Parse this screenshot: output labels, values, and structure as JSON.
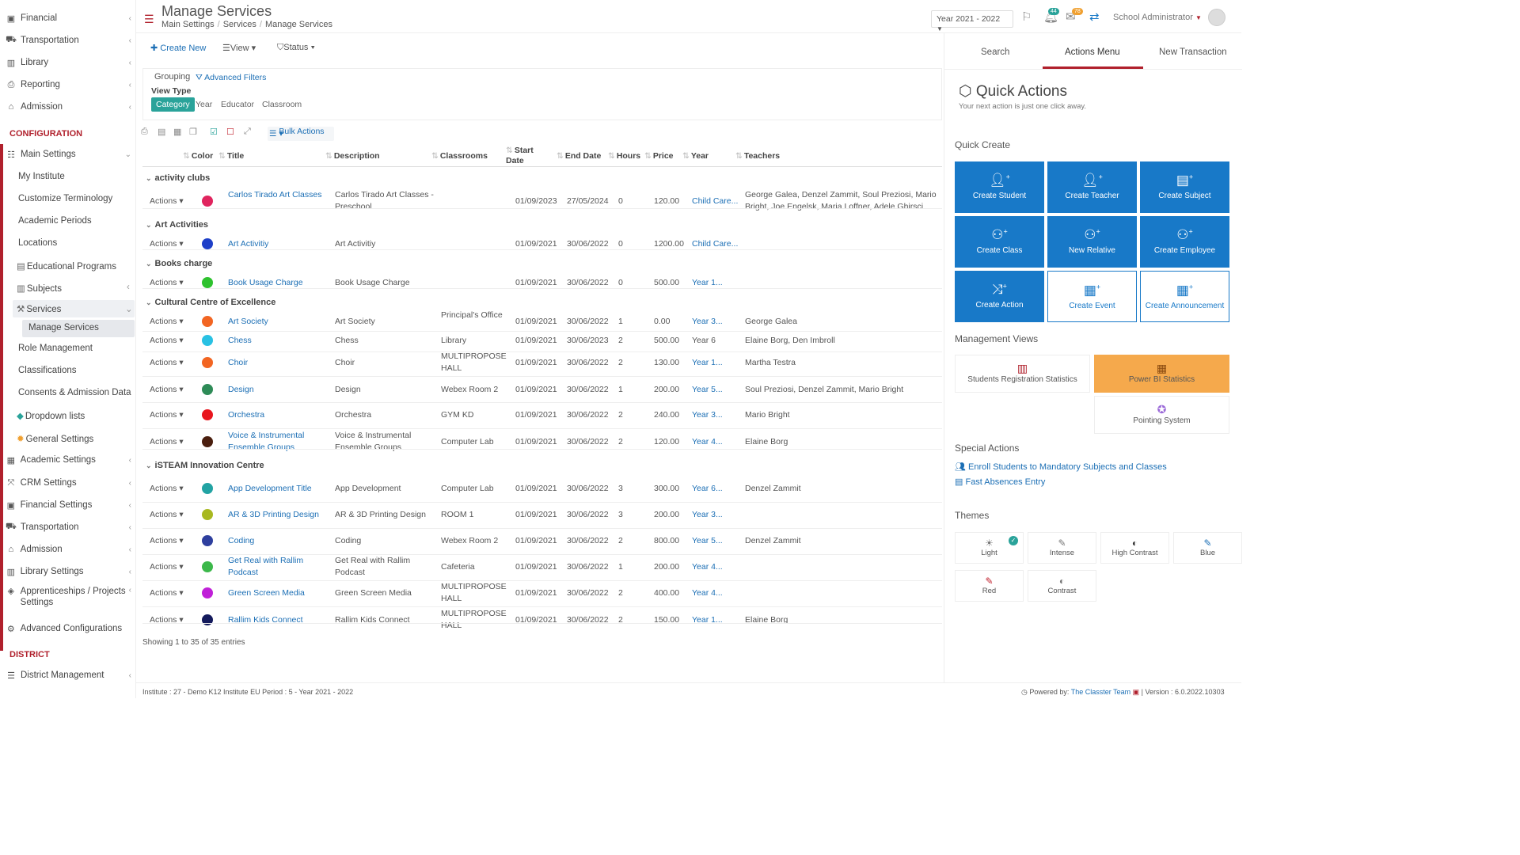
{
  "sidebar": {
    "top_items": [
      {
        "icon": "financial-icon",
        "label": "Financial"
      },
      {
        "icon": "bus-icon",
        "label": "Transportation"
      },
      {
        "icon": "library-icon",
        "label": "Library"
      },
      {
        "icon": "reporting-icon",
        "label": "Reporting"
      },
      {
        "icon": "bank-icon",
        "label": "Admission"
      }
    ],
    "config_heading": "CONFIGURATION",
    "main_settings": "Main Settings",
    "sub_items": [
      "My Institute",
      "Customize Terminology",
      "Academic Periods",
      "Locations",
      "Educational Programs",
      "Subjects",
      "Services",
      "Manage Services",
      "Role Management",
      "Classifications",
      "Consents & Admission Data",
      "Dropdown lists",
      "General Settings"
    ],
    "bottom_items": [
      {
        "icon": "academic-icon",
        "label": "Academic Settings"
      },
      {
        "icon": "crm-icon",
        "label": "CRM Settings"
      },
      {
        "icon": "financial-icon",
        "label": "Financial Settings"
      },
      {
        "icon": "bus-icon",
        "label": "Transportation"
      },
      {
        "icon": "bank-icon",
        "label": "Admission"
      },
      {
        "icon": "library-icon",
        "label": "Library Settings"
      },
      {
        "icon": "apprentice-icon",
        "label": "Apprenticeships / Projects Settings"
      },
      {
        "icon": "gears-icon",
        "label": "Advanced Configurations"
      }
    ],
    "district_heading": "DISTRICT",
    "district_item": "District Management"
  },
  "header": {
    "title": "Manage Services",
    "breadcrumb": [
      "Main Settings",
      "Services",
      "Manage Services"
    ],
    "year": "Year 2021 - 2022",
    "notif_count": "44",
    "mail_count": "78",
    "user": "School Administrator"
  },
  "toolbar": {
    "create": "Create New",
    "view": "View",
    "status": "Status"
  },
  "filters": {
    "grouping": "Grouping",
    "advanced": "Advanced Filters",
    "view_type": "View Type",
    "tabs": [
      "Category",
      "Year",
      "Educator",
      "Classroom"
    ]
  },
  "bulk": "Bulk Actions",
  "columns": [
    "Color",
    "Title",
    "Description",
    "Classrooms",
    "Start Date",
    "End Date",
    "Hours",
    "Price",
    "Year",
    "Teachers"
  ],
  "groups": [
    {
      "name": "activity clubs",
      "rows": [
        {
          "color": "#e0245e",
          "title": "Carlos Tirado Art Classes",
          "desc": "Carlos Tirado Art Classes - Preschool",
          "room": "",
          "start": "01/09/2023",
          "end": "27/05/2024",
          "hours": "0",
          "price": "120.00",
          "year": "Child Care...",
          "teachers": "George Galea, Denzel Zammit, Soul Preziosi, Mario Bright, Joe Engelsk, Maria Loffner, Adele Ghirsci"
        }
      ]
    },
    {
      "name": "Art Activities",
      "rows": [
        {
          "color": "#1e3fc8",
          "title": "Art Activitiy",
          "desc": "Art Activitiy",
          "room": "",
          "start": "01/09/2021",
          "end": "30/06/2022",
          "hours": "0",
          "price": "1200.00",
          "year": "Child Care...",
          "teachers": ""
        }
      ]
    },
    {
      "name": "Books charge",
      "rows": [
        {
          "color": "#2ec22e",
          "title": "Book Usage Charge",
          "desc": "Book Usage Charge",
          "room": "",
          "start": "01/09/2021",
          "end": "30/06/2022",
          "hours": "0",
          "price": "500.00",
          "year": "Year 1...",
          "teachers": ""
        }
      ]
    },
    {
      "name": "Cultural Centre of Excellence",
      "rows": [
        {
          "color": "#f26522",
          "title": "Art Society",
          "desc": "Art Society",
          "room": "Principal's Office",
          "start": "01/09/2021",
          "end": "30/06/2022",
          "hours": "1",
          "price": "0.00",
          "year": "Year 3...",
          "teachers": "George Galea"
        },
        {
          "color": "#29c1e3",
          "title": "Chess",
          "desc": "Chess",
          "room": "Library",
          "start": "01/09/2021",
          "end": "30/06/2023",
          "hours": "2",
          "price": "500.00",
          "year": "Year 6",
          "teachers": "Elaine Borg, Den Imbroll"
        },
        {
          "color": "#f26522",
          "title": "Choir",
          "desc": "Choir",
          "room": "MULTIPROPOSE HALL",
          "start": "01/09/2021",
          "end": "30/06/2022",
          "hours": "2",
          "price": "130.00",
          "year": "Year 1...",
          "teachers": "Martha Testra"
        },
        {
          "color": "#2e8b57",
          "title": "Design",
          "desc": "Design",
          "room": "Webex Room 2",
          "start": "01/09/2021",
          "end": "30/06/2022",
          "hours": "1",
          "price": "200.00",
          "year": "Year 5...",
          "teachers": "Soul Preziosi, Denzel Zammit, Mario Bright"
        },
        {
          "color": "#e8161e",
          "title": "Orchestra",
          "desc": "Orchestra",
          "room": "GYM KD",
          "start": "01/09/2021",
          "end": "30/06/2022",
          "hours": "2",
          "price": "240.00",
          "year": "Year 3...",
          "teachers": "Mario Bright"
        },
        {
          "color": "#4a1e0e",
          "title": "Voice & Instrumental Ensemble Groups",
          "desc": "Voice & Instrumental Ensemble Groups",
          "room": "Computer Lab",
          "start": "01/09/2021",
          "end": "30/06/2022",
          "hours": "2",
          "price": "120.00",
          "year": "Year 4...",
          "teachers": "Elaine Borg"
        }
      ]
    },
    {
      "name": "iSTEAM Innovation Centre",
      "rows": [
        {
          "color": "#22a3a3",
          "title": "App Development Title",
          "desc": "App Development",
          "room": "Computer Lab",
          "start": "01/09/2021",
          "end": "30/06/2022",
          "hours": "3",
          "price": "300.00",
          "year": "Year 6...",
          "teachers": "Denzel Zammit"
        },
        {
          "color": "#a8b820",
          "title": "AR & 3D Printing Design",
          "desc": "AR & 3D Printing Design",
          "room": "ROOM 1",
          "start": "01/09/2021",
          "end": "30/06/2022",
          "hours": "3",
          "price": "200.00",
          "year": "Year 3...",
          "teachers": ""
        },
        {
          "color": "#2e3f9e",
          "title": "Coding",
          "desc": "Coding",
          "room": "Webex Room 2",
          "start": "01/09/2021",
          "end": "30/06/2022",
          "hours": "2",
          "price": "800.00",
          "year": "Year 5...",
          "teachers": "Denzel Zammit"
        },
        {
          "color": "#3cb84a",
          "title": "Get Real with Rallim Podcast",
          "desc": "Get Real with Rallim Podcast",
          "room": "Cafeteria",
          "start": "01/09/2021",
          "end": "30/06/2022",
          "hours": "1",
          "price": "200.00",
          "year": "Year 4...",
          "teachers": ""
        },
        {
          "color": "#c020d8",
          "title": "Green Screen Media",
          "desc": "Green Screen Media",
          "room": "MULTIPROPOSE HALL",
          "start": "01/09/2021",
          "end": "30/06/2022",
          "hours": "2",
          "price": "400.00",
          "year": "Year 4...",
          "teachers": ""
        },
        {
          "color": "#141a5c",
          "title": "Rallim Kids Connect",
          "desc": "Rallim Kids Connect",
          "room": "MULTIPROPOSE HALL",
          "start": "01/09/2021",
          "end": "30/06/2022",
          "hours": "2",
          "price": "150.00",
          "year": "Year 1...",
          "teachers": "Elaine Borg"
        }
      ]
    }
  ],
  "actions_label": "Actions",
  "showing": "Showing 1 to 35 of 35 entries",
  "footer": {
    "left": "Institute : 27 - Demo K12 Institute EU Period : 5 - Year 2021 - 2022",
    "powered": "Powered by:",
    "team": "The Classter Team",
    "version": "| Version : 6.0.2022.10303"
  },
  "right": {
    "tabs": [
      "Search",
      "Actions Menu",
      "New Transaction"
    ],
    "qa_title": "Quick Actions",
    "qa_sub": "Your next action is just one click away.",
    "quick_create": "Quick Create",
    "cards": [
      "Create Student",
      "Create Teacher",
      "Create Subject",
      "Create Class",
      "New Relative",
      "Create Employee",
      "Create Action",
      "Create Event",
      "Create Announcement"
    ],
    "mgmt": "Management Views",
    "views": [
      "Students Registration Statistics",
      "Power BI Statistics",
      "Pointing System"
    ],
    "special": "Special Actions",
    "special_items": [
      "Enroll Students to Mandatory Subjects and Classes",
      "Fast Absences Entry"
    ],
    "themes_title": "Themes",
    "themes": [
      "Light",
      "Intense",
      "High Contrast",
      "Blue",
      "Red",
      "Contrast"
    ]
  }
}
